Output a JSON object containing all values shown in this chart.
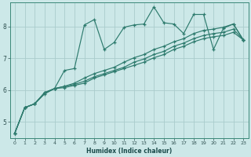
{
  "title": "",
  "xlabel": "Humidex (Indice chaleur)",
  "bg_color": "#cce8e8",
  "line_color": "#2e7b6e",
  "grid_color_major": "#aacccc",
  "grid_color_minor": "#c0dede",
  "xlim": [
    -0.5,
    23.5
  ],
  "ylim": [
    4.5,
    8.75
  ],
  "yticks": [
    5,
    6,
    7,
    8
  ],
  "xticks": [
    0,
    1,
    2,
    3,
    4,
    5,
    6,
    7,
    8,
    9,
    10,
    11,
    12,
    13,
    14,
    15,
    16,
    17,
    18,
    19,
    20,
    21,
    22,
    23
  ],
  "series": [
    [
      [
        0,
        4.65
      ],
      [
        1,
        5.45
      ],
      [
        2,
        5.57
      ],
      [
        3,
        5.88
      ],
      [
        4,
        6.05
      ],
      [
        5,
        6.62
      ],
      [
        6,
        6.68
      ],
      [
        7,
        8.05
      ],
      [
        8,
        8.22
      ],
      [
        9,
        7.28
      ],
      [
        10,
        7.5
      ],
      [
        11,
        7.98
      ],
      [
        12,
        8.05
      ],
      [
        13,
        8.08
      ],
      [
        14,
        8.62
      ],
      [
        15,
        8.12
      ],
      [
        16,
        8.08
      ],
      [
        17,
        7.78
      ],
      [
        18,
        8.38
      ],
      [
        19,
        8.38
      ],
      [
        20,
        7.28
      ],
      [
        21,
        7.95
      ],
      [
        22,
        8.08
      ],
      [
        23,
        7.58
      ]
    ],
    [
      [
        0,
        4.65
      ],
      [
        1,
        5.45
      ],
      [
        2,
        5.57
      ],
      [
        3,
        5.92
      ],
      [
        4,
        6.05
      ],
      [
        5,
        6.12
      ],
      [
        6,
        6.22
      ],
      [
        7,
        6.38
      ],
      [
        8,
        6.52
      ],
      [
        9,
        6.62
      ],
      [
        10,
        6.72
      ],
      [
        11,
        6.88
      ],
      [
        12,
        7.02
      ],
      [
        13,
        7.12
      ],
      [
        14,
        7.28
      ],
      [
        15,
        7.38
      ],
      [
        16,
        7.52
      ],
      [
        17,
        7.62
      ],
      [
        18,
        7.78
      ],
      [
        19,
        7.88
      ],
      [
        20,
        7.92
      ],
      [
        21,
        7.98
      ],
      [
        22,
        8.08
      ],
      [
        23,
        7.58
      ]
    ],
    [
      [
        0,
        4.65
      ],
      [
        1,
        5.45
      ],
      [
        2,
        5.57
      ],
      [
        3,
        5.92
      ],
      [
        4,
        6.05
      ],
      [
        5,
        6.12
      ],
      [
        6,
        6.18
      ],
      [
        7,
        6.28
      ],
      [
        8,
        6.42
      ],
      [
        9,
        6.52
      ],
      [
        10,
        6.62
      ],
      [
        11,
        6.72
      ],
      [
        12,
        6.88
      ],
      [
        13,
        6.98
      ],
      [
        14,
        7.12
      ],
      [
        15,
        7.22
      ],
      [
        16,
        7.38
      ],
      [
        17,
        7.48
      ],
      [
        18,
        7.62
      ],
      [
        19,
        7.72
      ],
      [
        20,
        7.78
      ],
      [
        21,
        7.82
      ],
      [
        22,
        7.92
      ],
      [
        23,
        7.58
      ]
    ],
    [
      [
        0,
        4.65
      ],
      [
        1,
        5.45
      ],
      [
        2,
        5.57
      ],
      [
        3,
        5.92
      ],
      [
        4,
        6.05
      ],
      [
        5,
        6.08
      ],
      [
        6,
        6.15
      ],
      [
        7,
        6.22
      ],
      [
        8,
        6.38
      ],
      [
        9,
        6.48
      ],
      [
        10,
        6.58
      ],
      [
        11,
        6.68
      ],
      [
        12,
        6.78
      ],
      [
        13,
        6.88
      ],
      [
        14,
        7.02
      ],
      [
        15,
        7.12
      ],
      [
        16,
        7.28
      ],
      [
        17,
        7.38
      ],
      [
        18,
        7.52
      ],
      [
        19,
        7.62
      ],
      [
        20,
        7.68
      ],
      [
        21,
        7.72
      ],
      [
        22,
        7.82
      ],
      [
        23,
        7.58
      ]
    ]
  ]
}
